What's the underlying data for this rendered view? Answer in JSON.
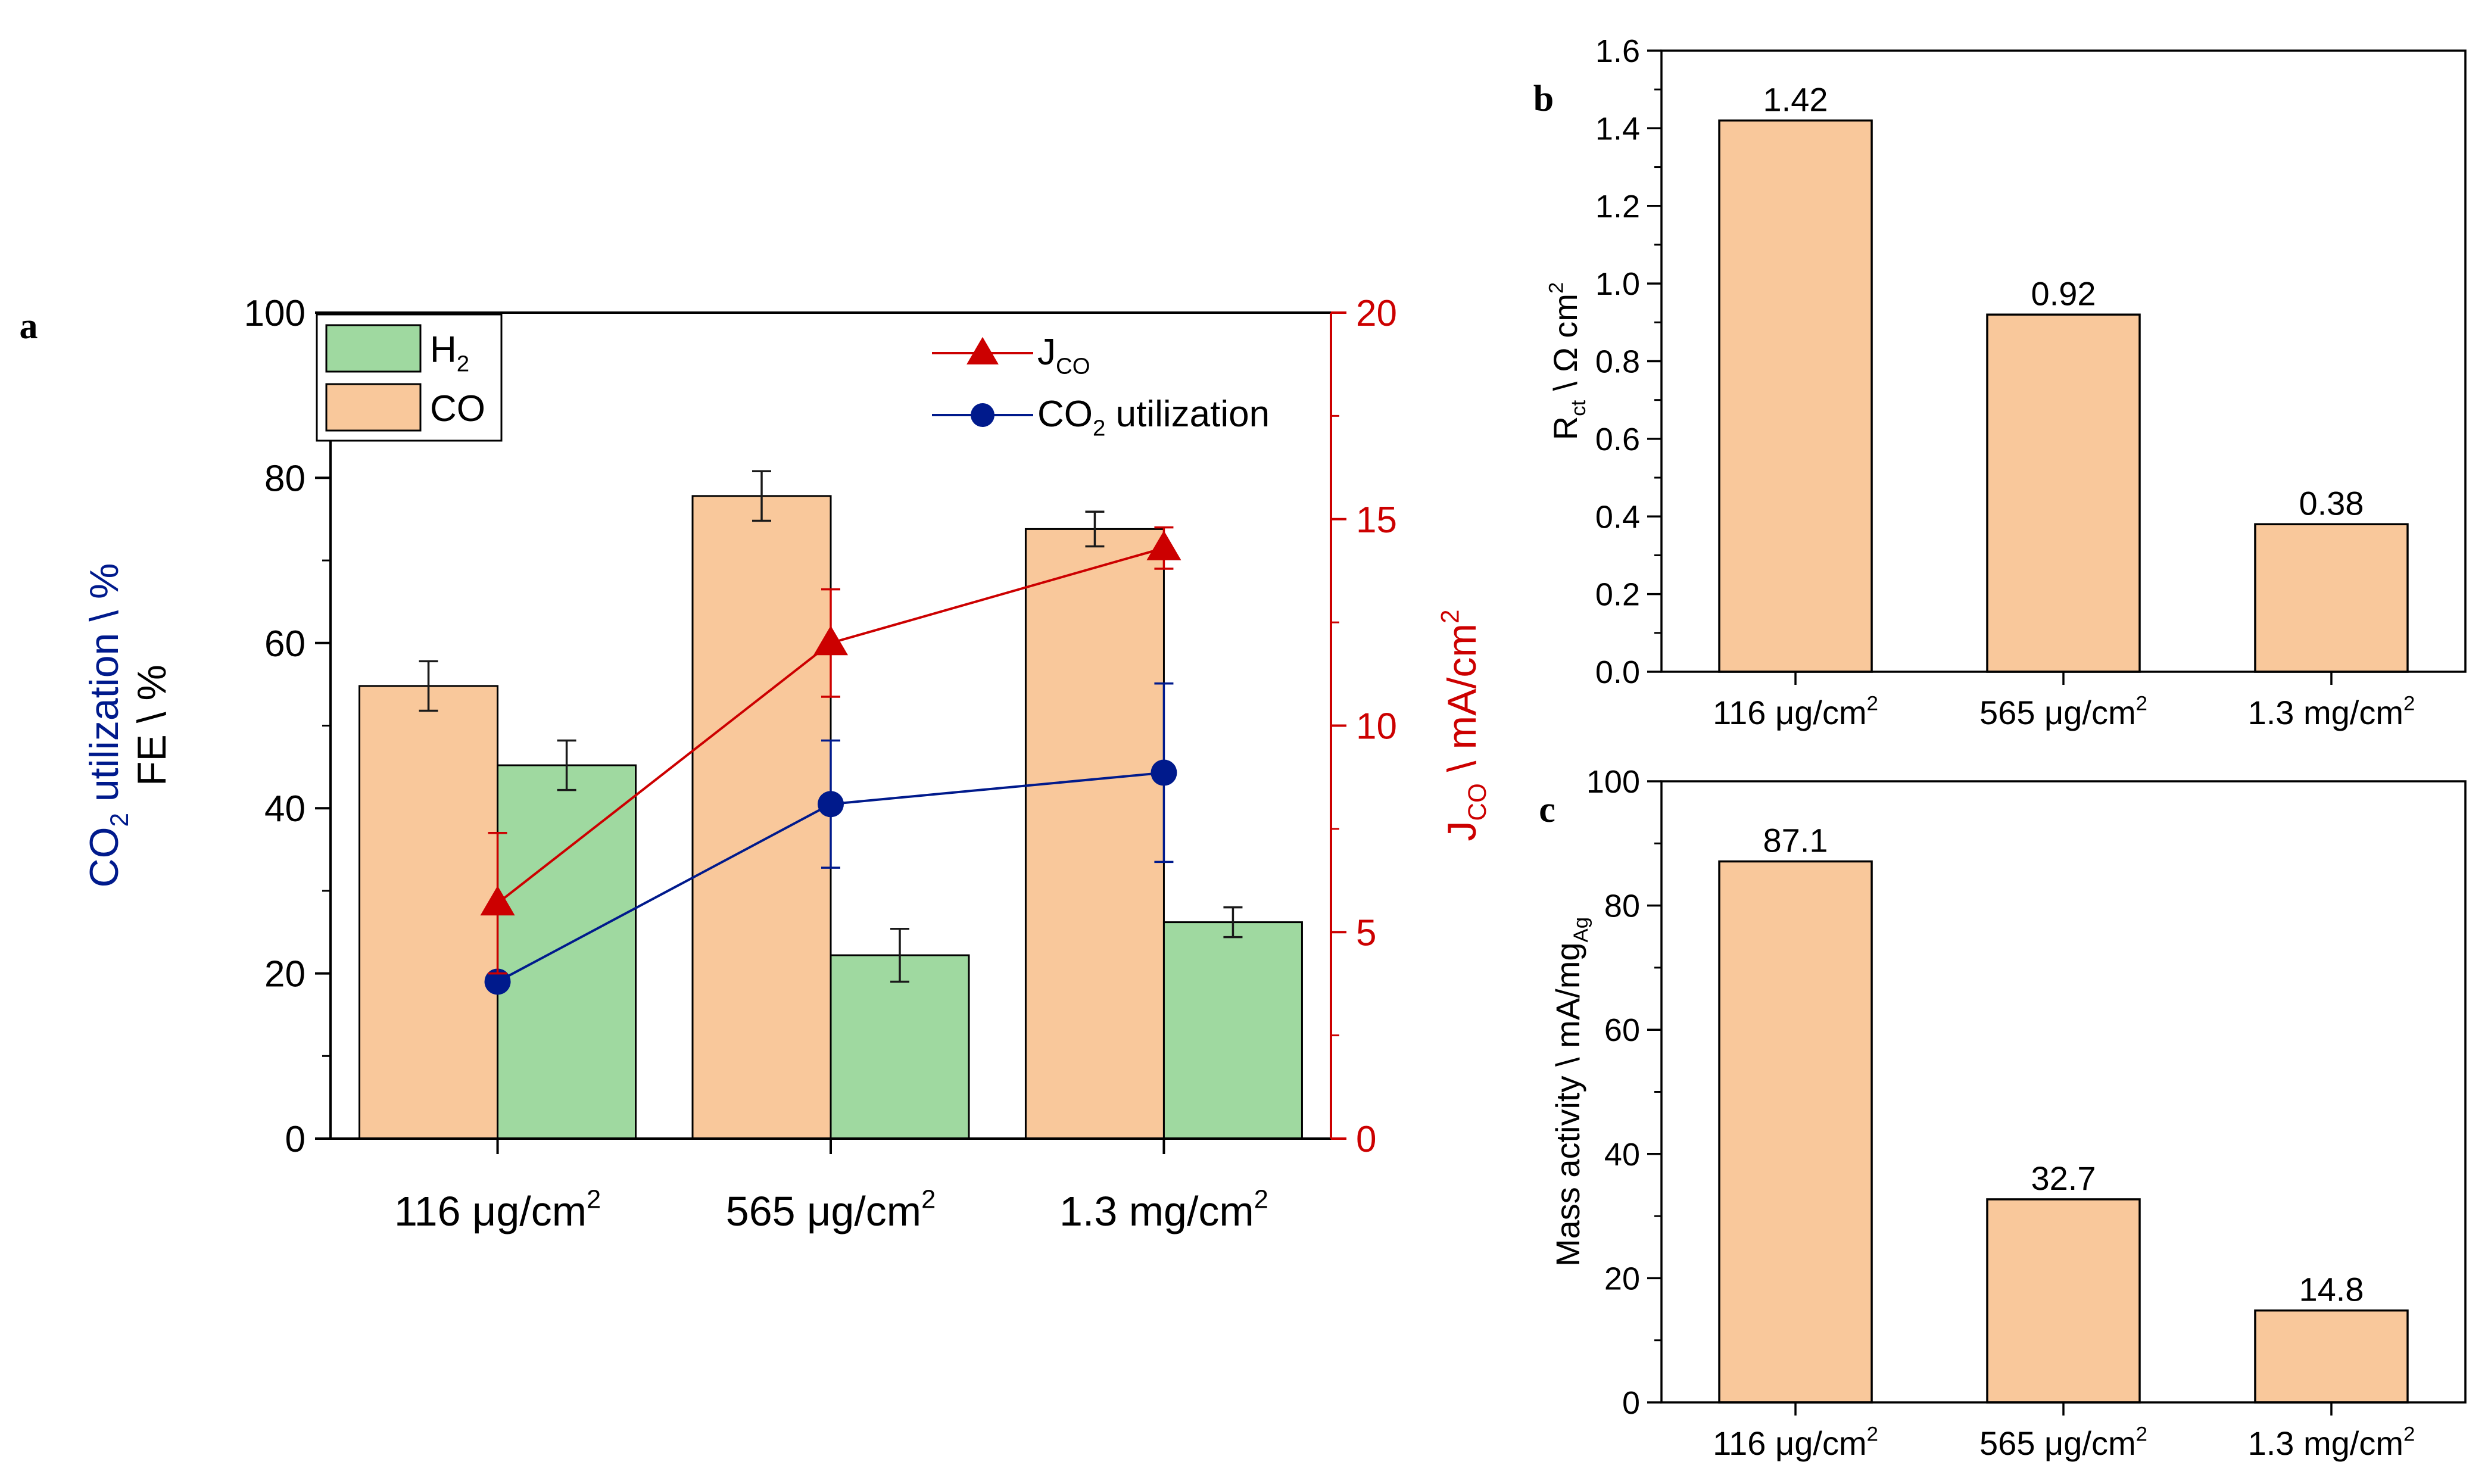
{
  "colors": {
    "co_bar": "#f9c89b",
    "h2_bar": "#9fd9a0",
    "jco": "#cc0000",
    "co2_util": "#001a8c",
    "axis": "#000000",
    "error": "#1a1a1a"
  },
  "chart_data": [
    {
      "id": "a",
      "panel_label": "a",
      "type": "bar",
      "categories": [
        {
          "main": "116 μg/cm",
          "sup": "2"
        },
        {
          "main": "565 μg/cm",
          "sup": "2"
        },
        {
          "main": "1.3 mg/cm",
          "sup": "2"
        }
      ],
      "series": [
        {
          "name": "CO",
          "axis": "left",
          "values": [
            54.8,
            77.8,
            73.8
          ],
          "errors": [
            3.0,
            3.0,
            2.1
          ]
        },
        {
          "name": "H₂",
          "axis": "left",
          "values": [
            45.2,
            22.2,
            26.2
          ],
          "errors": [
            3.0,
            3.2,
            1.8
          ]
        }
      ],
      "line_series": [
        {
          "name": "JCO",
          "axis": "right",
          "marker": "triangle",
          "values": [
            5.7,
            12.0,
            14.3
          ],
          "errors": [
            1.7,
            1.3,
            0.5
          ]
        },
        {
          "name": "CO2 utilization",
          "axis": "left",
          "marker": "circle",
          "values": [
            19.0,
            40.5,
            44.3
          ],
          "errors": [
            0,
            7.7,
            10.8
          ]
        }
      ],
      "left_axis": {
        "ylim": [
          0,
          100
        ],
        "ticks": [
          "0",
          "20",
          "40",
          "60",
          "80",
          "100"
        ]
      },
      "right_axis": {
        "ylim": [
          0,
          20
        ],
        "ticks": [
          "0",
          "5",
          "10",
          "15",
          "20"
        ]
      },
      "ylabel_left_1": {
        "pre": "CO",
        "sub": "2",
        "post": " utilization \\ %"
      },
      "ylabel_left_2": "FE \\ %",
      "ylabel_right": {
        "pre": "J",
        "sub": "CO",
        "post": " \\ mA/cm",
        "sup": "2"
      },
      "legend_left": [
        {
          "pre": "H",
          "sub": "2"
        },
        {
          "pre": "CO",
          "sub": ""
        }
      ],
      "legend_right": [
        {
          "pre": "J",
          "sub": "CO",
          "post": ""
        },
        {
          "pre": "CO",
          "sub": "2",
          "post": " utilization"
        }
      ]
    },
    {
      "id": "b",
      "panel_label": "b",
      "type": "bar",
      "categories": [
        {
          "main": "116 μg/cm",
          "sup": "2"
        },
        {
          "main": "565 μg/cm",
          "sup": "2"
        },
        {
          "main": "1.3 mg/cm",
          "sup": "2"
        }
      ],
      "values": [
        1.42,
        0.92,
        0.38
      ],
      "value_labels": [
        "1.42",
        "0.92",
        "0.38"
      ],
      "ylim": [
        0,
        1.6
      ],
      "ticks": [
        "0.0",
        "0.2",
        "0.4",
        "0.6",
        "0.8",
        "1.0",
        "1.2",
        "1.4",
        "1.6"
      ],
      "ylabel": {
        "pre": "R",
        "sub": "ct",
        "post": " \\ Ω cm",
        "sup": "2"
      }
    },
    {
      "id": "c",
      "panel_label": "c",
      "type": "bar",
      "categories": [
        {
          "main": "116 μg/cm",
          "sup": "2"
        },
        {
          "main": "565 μg/cm",
          "sup": "2"
        },
        {
          "main": "1.3 mg/cm",
          "sup": "2"
        }
      ],
      "values": [
        87.1,
        32.7,
        14.8
      ],
      "value_labels": [
        "87.1",
        "32.7",
        "14.8"
      ],
      "ylim": [
        0,
        100
      ],
      "ticks": [
        "0",
        "20",
        "40",
        "60",
        "80",
        "100"
      ],
      "ylabel": {
        "pre": "Mass activity \\ mA/mg",
        "sub": "Ag"
      }
    }
  ]
}
